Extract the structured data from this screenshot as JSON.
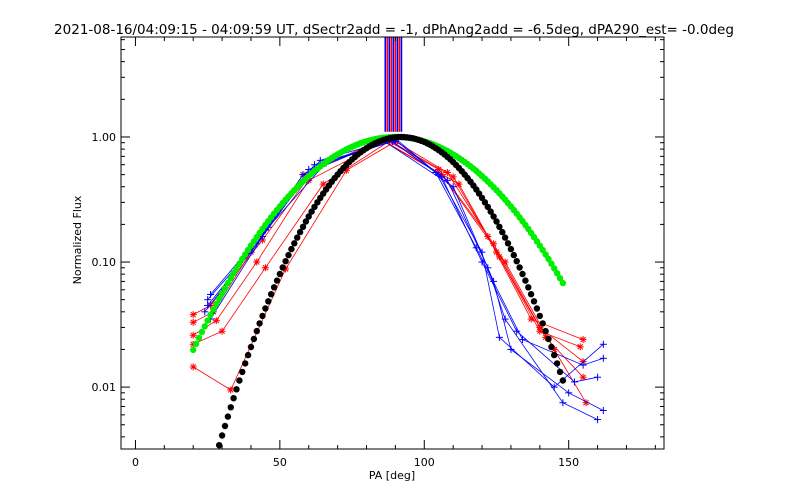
{
  "chart_data": {
    "type": "scatter",
    "title": "2021-08-16/04:09:15 - 04:09:59 UT, dSectr2add = -1, dPhAng2add = -6.5deg, dPA290_est= -0.0deg",
    "xlabel": "PA [deg]",
    "ylabel": "Normalized Flux",
    "xlim": [
      -5,
      183
    ],
    "ylim": [
      0.0032,
      6.3
    ],
    "yscale": "log",
    "xticks": [
      0,
      50,
      100,
      150
    ],
    "xtick_labels": [
      "0",
      "50",
      "100",
      "150"
    ],
    "yticks": [
      0.01,
      0.1,
      1.0
    ],
    "ytick_labels": [
      "0.01",
      "0.10",
      "1.00"
    ],
    "colors": {
      "red": "#ff0000",
      "blue": "#0000ff",
      "green": "#00ee00",
      "black": "#000000"
    },
    "series": [
      {
        "color": "red",
        "marker": "asterisk",
        "x": [
          20,
          33,
          52,
          73,
          90,
          108,
          122,
          137,
          155
        ],
        "y": [
          0.0145,
          0.0095,
          0.088,
          0.54,
          0.92,
          0.52,
          0.16,
          0.035,
          0.024
        ]
      },
      {
        "color": "red",
        "marker": "asterisk",
        "x": [
          20,
          30,
          45,
          65,
          88,
          110,
          125,
          140,
          155
        ],
        "y": [
          0.022,
          0.028,
          0.09,
          0.42,
          0.93,
          0.48,
          0.12,
          0.03,
          0.016
        ]
      },
      {
        "color": "red",
        "marker": "asterisk",
        "x": [
          20,
          28,
          42,
          60,
          87,
          105,
          124,
          142,
          155
        ],
        "y": [
          0.026,
          0.034,
          0.1,
          0.45,
          0.94,
          0.55,
          0.14,
          0.025,
          0.012
        ]
      },
      {
        "color": "red",
        "marker": "asterisk",
        "x": [
          20,
          27,
          40,
          58,
          85,
          106,
          128,
          145,
          156
        ],
        "y": [
          0.033,
          0.04,
          0.12,
          0.5,
          0.95,
          0.5,
          0.1,
          0.02,
          0.0075
        ]
      },
      {
        "color": "red",
        "marker": "asterisk",
        "x": [
          20,
          26,
          44,
          62,
          86,
          112,
          126,
          140,
          154
        ],
        "y": [
          0.038,
          0.045,
          0.15,
          0.55,
          0.93,
          0.42,
          0.11,
          0.028,
          0.021
        ]
      },
      {
        "color": "blue",
        "marker": "plus",
        "x": [
          26,
          45,
          64,
          90,
          105,
          120,
          126,
          145,
          162
        ],
        "y": [
          0.055,
          0.18,
          0.65,
          0.97,
          0.5,
          0.12,
          0.025,
          0.01,
          0.022
        ]
      },
      {
        "color": "blue",
        "marker": "plus",
        "x": [
          25,
          42,
          60,
          88,
          108,
          122,
          128,
          148,
          160
        ],
        "y": [
          0.05,
          0.14,
          0.55,
          0.95,
          0.45,
          0.09,
          0.035,
          0.0075,
          0.0055
        ]
      },
      {
        "color": "blue",
        "marker": "plus",
        "x": [
          25,
          40,
          58,
          86,
          110,
          124,
          130,
          150,
          162
        ],
        "y": [
          0.045,
          0.12,
          0.5,
          0.93,
          0.4,
          0.07,
          0.02,
          0.009,
          0.0065
        ]
      },
      {
        "color": "blue",
        "marker": "plus",
        "x": [
          24,
          44,
          62,
          90,
          106,
          120,
          132,
          152,
          160
        ],
        "y": [
          0.04,
          0.16,
          0.6,
          0.94,
          0.48,
          0.1,
          0.028,
          0.011,
          0.012
        ]
      },
      {
        "color": "blue",
        "marker": "plus",
        "x": [
          26,
          46,
          66,
          89,
          104,
          118,
          134,
          155,
          162
        ],
        "y": [
          0.035,
          0.19,
          0.62,
          0.92,
          0.52,
          0.13,
          0.024,
          0.015,
          0.017
        ]
      }
    ],
    "fit_curves": [
      {
        "color": "green",
        "marker": "filled-circle",
        "center": 90,
        "peak": 1.0,
        "sigma": 25.0,
        "x_range": [
          20,
          148
        ]
      },
      {
        "color": "black",
        "marker": "filled-circle",
        "center": 92,
        "peak": 1.0,
        "sigma": 18.7,
        "x_range": [
          20,
          148
        ]
      }
    ],
    "vertical_bars": [
      {
        "color": "blue",
        "x": 86.5
      },
      {
        "color": "red",
        "x": 87.2
      },
      {
        "color": "blue",
        "x": 87.9
      },
      {
        "color": "red",
        "x": 88.6
      },
      {
        "color": "blue",
        "x": 89.3
      },
      {
        "color": "red",
        "x": 90.0
      },
      {
        "color": "blue",
        "x": 90.7
      },
      {
        "color": "red",
        "x": 91.4
      },
      {
        "color": "blue",
        "x": 92.1
      }
    ],
    "vertical_bars_y_range": [
      1.1,
      6.3
    ],
    "grid": false,
    "legend": "none"
  }
}
